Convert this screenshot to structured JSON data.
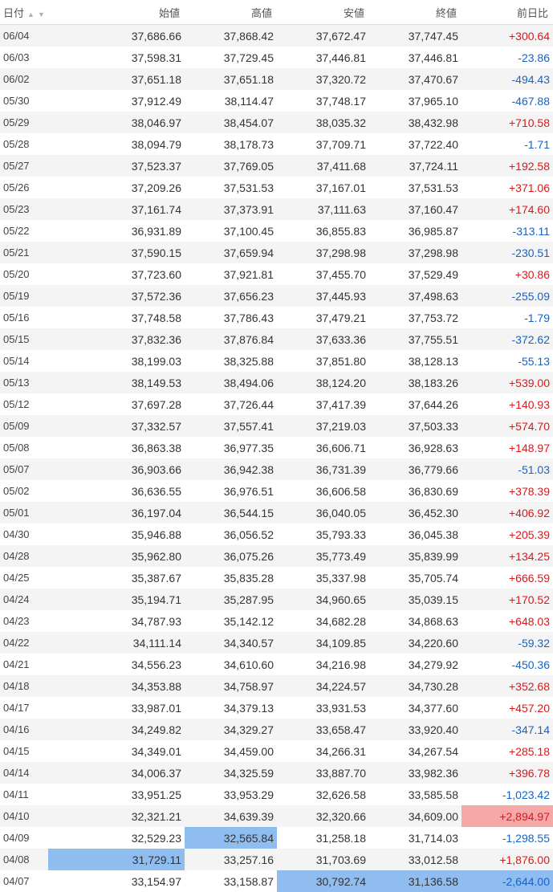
{
  "headers": {
    "date": "日付",
    "open": "始値",
    "high": "高値",
    "low": "安値",
    "close": "終値",
    "change": "前日比"
  },
  "colors": {
    "up": "#e0161a",
    "down": "#1563c8",
    "highlight_blue": "#8fbdf0",
    "highlight_red": "#f6a8a8"
  },
  "rows": [
    {
      "date": "06/04",
      "open": "37,686.66",
      "high": "37,868.42",
      "low": "37,672.47",
      "close": "37,747.45",
      "change": "+300.64"
    },
    {
      "date": "06/03",
      "open": "37,598.31",
      "high": "37,729.45",
      "low": "37,446.81",
      "close": "37,446.81",
      "change": "-23.86"
    },
    {
      "date": "06/02",
      "open": "37,651.18",
      "high": "37,651.18",
      "low": "37,320.72",
      "close": "37,470.67",
      "change": "-494.43"
    },
    {
      "date": "05/30",
      "open": "37,912.49",
      "high": "38,114.47",
      "low": "37,748.17",
      "close": "37,965.10",
      "change": "-467.88"
    },
    {
      "date": "05/29",
      "open": "38,046.97",
      "high": "38,454.07",
      "low": "38,035.32",
      "close": "38,432.98",
      "change": "+710.58"
    },
    {
      "date": "05/28",
      "open": "38,094.79",
      "high": "38,178.73",
      "low": "37,709.71",
      "close": "37,722.40",
      "change": "-1.71"
    },
    {
      "date": "05/27",
      "open": "37,523.37",
      "high": "37,769.05",
      "low": "37,411.68",
      "close": "37,724.11",
      "change": "+192.58"
    },
    {
      "date": "05/26",
      "open": "37,209.26",
      "high": "37,531.53",
      "low": "37,167.01",
      "close": "37,531.53",
      "change": "+371.06"
    },
    {
      "date": "05/23",
      "open": "37,161.74",
      "high": "37,373.91",
      "low": "37,111.63",
      "close": "37,160.47",
      "change": "+174.60"
    },
    {
      "date": "05/22",
      "open": "36,931.89",
      "high": "37,100.45",
      "low": "36,855.83",
      "close": "36,985.87",
      "change": "-313.11"
    },
    {
      "date": "05/21",
      "open": "37,590.15",
      "high": "37,659.94",
      "low": "37,298.98",
      "close": "37,298.98",
      "change": "-230.51"
    },
    {
      "date": "05/20",
      "open": "37,723.60",
      "high": "37,921.81",
      "low": "37,455.70",
      "close": "37,529.49",
      "change": "+30.86"
    },
    {
      "date": "05/19",
      "open": "37,572.36",
      "high": "37,656.23",
      "low": "37,445.93",
      "close": "37,498.63",
      "change": "-255.09"
    },
    {
      "date": "05/16",
      "open": "37,748.58",
      "high": "37,786.43",
      "low": "37,479.21",
      "close": "37,753.72",
      "change": "-1.79"
    },
    {
      "date": "05/15",
      "open": "37,832.36",
      "high": "37,876.84",
      "low": "37,633.36",
      "close": "37,755.51",
      "change": "-372.62"
    },
    {
      "date": "05/14",
      "open": "38,199.03",
      "high": "38,325.88",
      "low": "37,851.80",
      "close": "38,128.13",
      "change": "-55.13"
    },
    {
      "date": "05/13",
      "open": "38,149.53",
      "high": "38,494.06",
      "low": "38,124.20",
      "close": "38,183.26",
      "change": "+539.00"
    },
    {
      "date": "05/12",
      "open": "37,697.28",
      "high": "37,726.44",
      "low": "37,417.39",
      "close": "37,644.26",
      "change": "+140.93"
    },
    {
      "date": "05/09",
      "open": "37,332.57",
      "high": "37,557.41",
      "low": "37,219.03",
      "close": "37,503.33",
      "change": "+574.70"
    },
    {
      "date": "05/08",
      "open": "36,863.38",
      "high": "36,977.35",
      "low": "36,606.71",
      "close": "36,928.63",
      "change": "+148.97"
    },
    {
      "date": "05/07",
      "open": "36,903.66",
      "high": "36,942.38",
      "low": "36,731.39",
      "close": "36,779.66",
      "change": "-51.03"
    },
    {
      "date": "05/02",
      "open": "36,636.55",
      "high": "36,976.51",
      "low": "36,606.58",
      "close": "36,830.69",
      "change": "+378.39"
    },
    {
      "date": "05/01",
      "open": "36,197.04",
      "high": "36,544.15",
      "low": "36,040.05",
      "close": "36,452.30",
      "change": "+406.92"
    },
    {
      "date": "04/30",
      "open": "35,946.88",
      "high": "36,056.52",
      "low": "35,793.33",
      "close": "36,045.38",
      "change": "+205.39"
    },
    {
      "date": "04/28",
      "open": "35,962.80",
      "high": "36,075.26",
      "low": "35,773.49",
      "close": "35,839.99",
      "change": "+134.25"
    },
    {
      "date": "04/25",
      "open": "35,387.67",
      "high": "35,835.28",
      "low": "35,337.98",
      "close": "35,705.74",
      "change": "+666.59"
    },
    {
      "date": "04/24",
      "open": "35,194.71",
      "high": "35,287.95",
      "low": "34,960.65",
      "close": "35,039.15",
      "change": "+170.52"
    },
    {
      "date": "04/23",
      "open": "34,787.93",
      "high": "35,142.12",
      "low": "34,682.28",
      "close": "34,868.63",
      "change": "+648.03"
    },
    {
      "date": "04/22",
      "open": "34,111.14",
      "high": "34,340.57",
      "low": "34,109.85",
      "close": "34,220.60",
      "change": "-59.32"
    },
    {
      "date": "04/21",
      "open": "34,556.23",
      "high": "34,610.60",
      "low": "34,216.98",
      "close": "34,279.92",
      "change": "-450.36"
    },
    {
      "date": "04/18",
      "open": "34,353.88",
      "high": "34,758.97",
      "low": "34,224.57",
      "close": "34,730.28",
      "change": "+352.68"
    },
    {
      "date": "04/17",
      "open": "33,987.01",
      "high": "34,379.13",
      "low": "33,931.53",
      "close": "34,377.60",
      "change": "+457.20"
    },
    {
      "date": "04/16",
      "open": "34,249.82",
      "high": "34,329.27",
      "low": "33,658.47",
      "close": "33,920.40",
      "change": "-347.14"
    },
    {
      "date": "04/15",
      "open": "34,349.01",
      "high": "34,459.00",
      "low": "34,266.31",
      "close": "34,267.54",
      "change": "+285.18"
    },
    {
      "date": "04/14",
      "open": "34,006.37",
      "high": "34,325.59",
      "low": "33,887.70",
      "close": "33,982.36",
      "change": "+396.78"
    },
    {
      "date": "04/11",
      "open": "33,951.25",
      "high": "33,953.29",
      "low": "32,626.58",
      "close": "33,585.58",
      "change": "-1,023.42"
    },
    {
      "date": "04/10",
      "open": "32,321.21",
      "high": "34,639.39",
      "low": "32,320.66",
      "close": "34,609.00",
      "change": "+2,894.97",
      "highlight": {
        "change": "red"
      }
    },
    {
      "date": "04/09",
      "open": "32,529.23",
      "high": "32,565.84",
      "low": "31,258.18",
      "close": "31,714.03",
      "change": "-1,298.55",
      "highlight": {
        "high": "blue"
      }
    },
    {
      "date": "04/08",
      "open": "31,729.11",
      "high": "33,257.16",
      "low": "31,703.69",
      "close": "33,012.58",
      "change": "+1,876.00",
      "highlight": {
        "open": "blue"
      }
    },
    {
      "date": "04/07",
      "open": "33,154.97",
      "high": "33,158.87",
      "low": "30,792.74",
      "close": "31,136.58",
      "change": "-2,644.00",
      "highlight": {
        "low": "blue",
        "close": "blue",
        "change": "blue"
      }
    }
  ]
}
